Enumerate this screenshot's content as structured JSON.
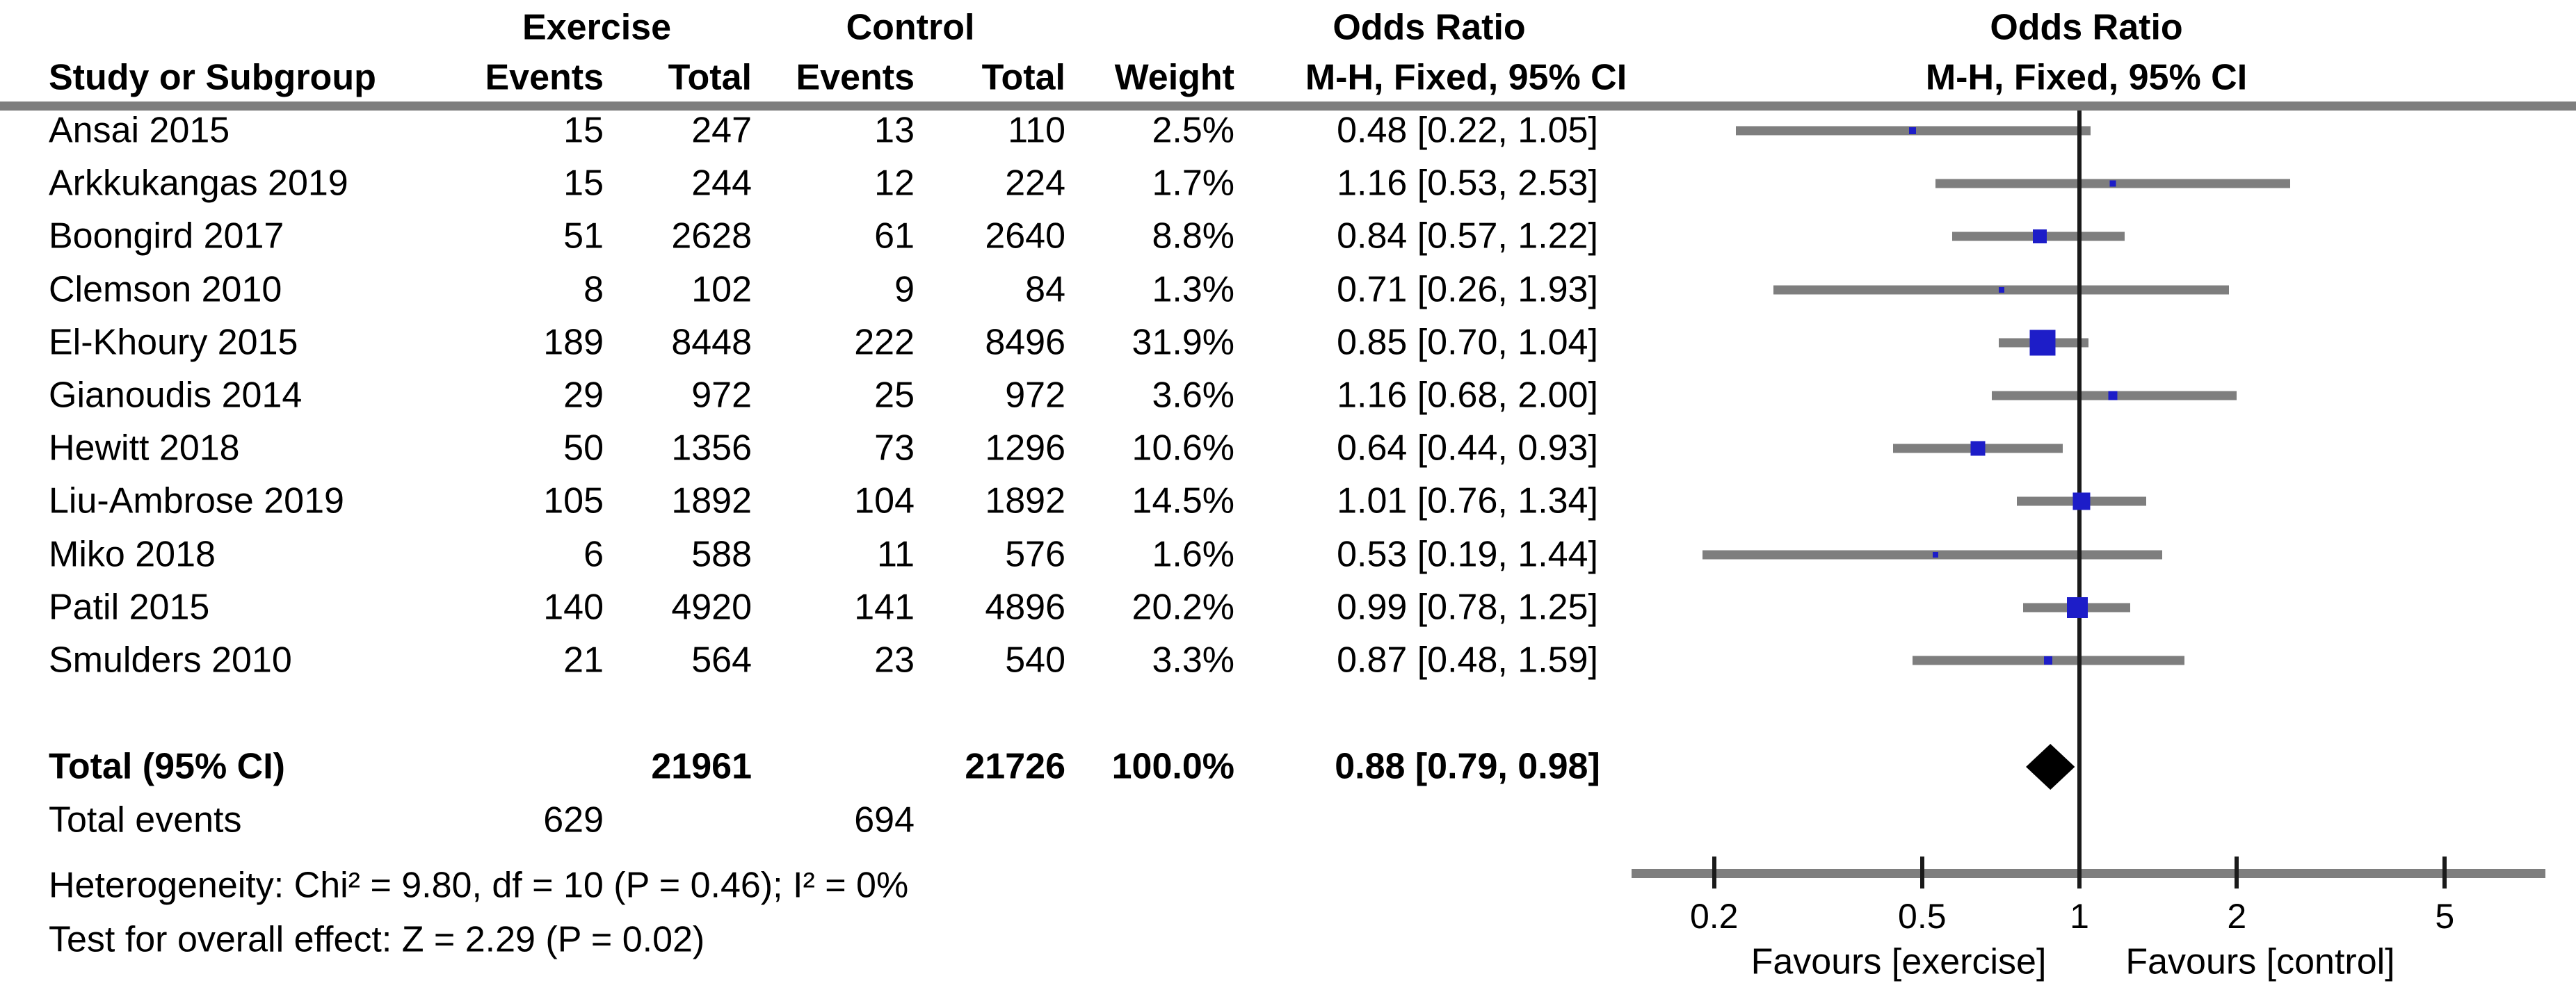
{
  "header": {
    "study_col": "Study or Subgroup",
    "group1": "Exercise",
    "group2": "Control",
    "events_col": "Events",
    "total_col": "Total",
    "weight_col": "Weight",
    "or_col_line1": "Odds Ratio",
    "or_col_line2": "M-H, Fixed, 95% CI",
    "plot_col_line1": "Odds Ratio",
    "plot_col_line2": "M-H, Fixed, 95% CI"
  },
  "rows": {
    "total_label": "Total (95% CI)",
    "total_exercise_total": "21961",
    "total_control_total": "21726",
    "total_weight": "100.0%",
    "total_or_text": "0.88 [0.79, 0.98]",
    "total_events_label": "Total events",
    "total_events_exercise": "629",
    "total_events_control": "694"
  },
  "footnotes": {
    "heterogeneity": "Heterogeneity: Chi² = 9.80, df = 10 (P = 0.46); I² = 0%",
    "overall_effect": "Test for overall effect: Z = 2.29 (P = 0.02)"
  },
  "chart_data": {
    "type": "forest",
    "effect_measure": "Odds Ratio, M-H, Fixed, 95% CI",
    "x_scale": "log",
    "x_ticks": [
      0.2,
      0.5,
      1,
      2,
      5
    ],
    "x_range_approx": [
      0.13,
      7.5
    ],
    "null_line": 1,
    "favours_left": "Favours [exercise]",
    "favours_right": "Favours [control]",
    "studies": [
      {
        "name": "Ansai 2015",
        "exercise_events": "15",
        "exercise_total": "247",
        "control_events": "13",
        "control_total": "110",
        "weight": "2.5%",
        "weight_pct": 2.5,
        "or": 0.48,
        "ci_low": 0.22,
        "ci_high": 1.05,
        "or_text": "0.48 [0.22, 1.05]"
      },
      {
        "name": "Arkkukangas 2019",
        "exercise_events": "15",
        "exercise_total": "244",
        "control_events": "12",
        "control_total": "224",
        "weight": "1.7%",
        "weight_pct": 1.7,
        "or": 1.16,
        "ci_low": 0.53,
        "ci_high": 2.53,
        "or_text": "1.16 [0.53, 2.53]"
      },
      {
        "name": "Boongird 2017",
        "exercise_events": "51",
        "exercise_total": "2628",
        "control_events": "61",
        "control_total": "2640",
        "weight": "8.8%",
        "weight_pct": 8.8,
        "or": 0.84,
        "ci_low": 0.57,
        "ci_high": 1.22,
        "or_text": "0.84 [0.57, 1.22]"
      },
      {
        "name": "Clemson 2010",
        "exercise_events": "8",
        "exercise_total": "102",
        "control_events": "9",
        "control_total": "84",
        "weight": "1.3%",
        "weight_pct": 1.3,
        "or": 0.71,
        "ci_low": 0.26,
        "ci_high": 1.93,
        "or_text": "0.71 [0.26, 1.93]"
      },
      {
        "name": "El-Khoury 2015",
        "exercise_events": "189",
        "exercise_total": "8448",
        "control_events": "222",
        "control_total": "8496",
        "weight": "31.9%",
        "weight_pct": 31.9,
        "or": 0.85,
        "ci_low": 0.7,
        "ci_high": 1.04,
        "or_text": "0.85 [0.70, 1.04]"
      },
      {
        "name": "Gianoudis 2014",
        "exercise_events": "29",
        "exercise_total": "972",
        "control_events": "25",
        "control_total": "972",
        "weight": "3.6%",
        "weight_pct": 3.6,
        "or": 1.16,
        "ci_low": 0.68,
        "ci_high": 2.0,
        "or_text": "1.16 [0.68, 2.00]"
      },
      {
        "name": "Hewitt 2018",
        "exercise_events": "50",
        "exercise_total": "1356",
        "control_events": "73",
        "control_total": "1296",
        "weight": "10.6%",
        "weight_pct": 10.6,
        "or": 0.64,
        "ci_low": 0.44,
        "ci_high": 0.93,
        "or_text": "0.64 [0.44, 0.93]"
      },
      {
        "name": "Liu-Ambrose 2019",
        "exercise_events": "105",
        "exercise_total": "1892",
        "control_events": "104",
        "control_total": "1892",
        "weight": "14.5%",
        "weight_pct": 14.5,
        "or": 1.01,
        "ci_low": 0.76,
        "ci_high": 1.34,
        "or_text": "1.01 [0.76, 1.34]"
      },
      {
        "name": "Miko 2018",
        "exercise_events": "6",
        "exercise_total": "588",
        "control_events": "11",
        "control_total": "576",
        "weight": "1.6%",
        "weight_pct": 1.6,
        "or": 0.53,
        "ci_low": 0.19,
        "ci_high": 1.44,
        "or_text": "0.53 [0.19, 1.44]"
      },
      {
        "name": "Patil 2015",
        "exercise_events": "140",
        "exercise_total": "4920",
        "control_events": "141",
        "control_total": "4896",
        "weight": "20.2%",
        "weight_pct": 20.2,
        "or": 0.99,
        "ci_low": 0.78,
        "ci_high": 1.25,
        "or_text": "0.99 [0.78, 1.25]"
      },
      {
        "name": "Smulders 2010",
        "exercise_events": "21",
        "exercise_total": "564",
        "control_events": "23",
        "control_total": "540",
        "weight": "3.3%",
        "weight_pct": 3.3,
        "or": 0.87,
        "ci_low": 0.48,
        "ci_high": 1.59,
        "or_text": "0.87 [0.48, 1.59]"
      }
    ],
    "total": {
      "label": "Total (95% CI)",
      "or": 0.88,
      "ci_low": 0.79,
      "ci_high": 0.98,
      "weight_pct": 100.0
    }
  },
  "colors": {
    "ci_bar": "#7e7e7e",
    "marker_blue": "#1d1dc8",
    "diamond": "#000000",
    "axis_gray": "#7e7e7e",
    "line_black": "#1a1a1a",
    "text": "#000000"
  }
}
